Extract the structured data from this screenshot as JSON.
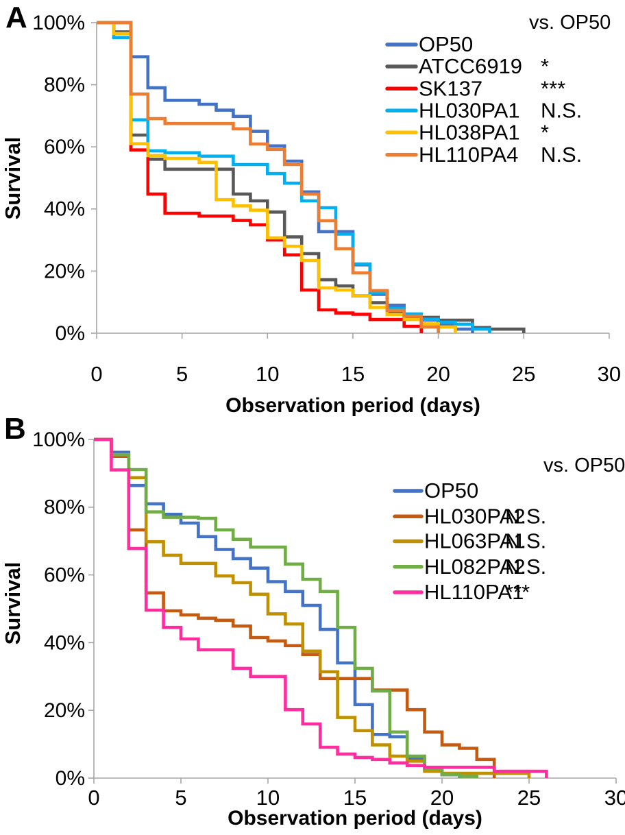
{
  "figure": {
    "background": "#FFFFFF",
    "axis_color": "#A6A6A6",
    "text_color": "#000000"
  },
  "chart_data": [
    {
      "type": "line",
      "subtype": "step-survival",
      "panel_label": "A",
      "xlabel": "Observation period (days)",
      "ylabel": "Survival",
      "legend_header": "vs. OP50",
      "legend_position": "top-right",
      "grid": false,
      "xlim": [
        0,
        30
      ],
      "ylim": [
        0,
        100
      ],
      "xticks": [
        0,
        5,
        10,
        15,
        20,
        25,
        30
      ],
      "xtick_labels": [
        "0",
        "5",
        "10",
        "15",
        "20",
        "25",
        "30"
      ],
      "yticks": [
        0,
        20,
        40,
        60,
        80,
        100
      ],
      "ytick_labels": [
        "0%",
        "20%",
        "40%",
        "60%",
        "80%",
        "100%"
      ],
      "series": [
        {
          "name": "OP50",
          "color": "#4472C4",
          "significance": "",
          "points": [
            [
              0,
              100
            ],
            [
              1,
              96.5
            ],
            [
              2,
              89
            ],
            [
              3,
              79
            ],
            [
              4,
              75
            ],
            [
              6,
              73.7
            ],
            [
              7,
              71.8
            ],
            [
              8,
              69.8
            ],
            [
              9,
              65
            ],
            [
              10,
              60.3
            ],
            [
              11,
              55.4
            ],
            [
              12,
              45.5
            ],
            [
              13,
              32.7
            ],
            [
              15,
              22
            ],
            [
              16,
              12.5
            ],
            [
              17,
              9
            ],
            [
              18,
              5
            ],
            [
              19,
              4.2
            ],
            [
              20,
              2.6
            ],
            [
              21,
              1.3
            ],
            [
              22,
              0
            ]
          ]
        },
        {
          "name": "ATCC6919",
          "color": "#595959",
          "significance": "*",
          "points": [
            [
              0,
              100
            ],
            [
              1,
              97
            ],
            [
              2,
              63.8
            ],
            [
              3,
              56
            ],
            [
              4,
              52.8
            ],
            [
              8,
              44.8
            ],
            [
              9,
              42.6
            ],
            [
              10,
              39
            ],
            [
              11,
              31
            ],
            [
              12,
              25.6
            ],
            [
              13,
              17.2
            ],
            [
              14,
              15.2
            ],
            [
              15,
              12
            ],
            [
              16,
              9.8
            ],
            [
              17,
              7
            ],
            [
              18,
              5.1
            ],
            [
              20,
              4.2
            ],
            [
              22,
              1.8
            ],
            [
              23,
              1.3
            ],
            [
              25,
              0
            ]
          ]
        },
        {
          "name": "SK137",
          "color": "#FF0000",
          "significance": "***",
          "points": [
            [
              0,
              100
            ],
            [
              2,
              59
            ],
            [
              3,
              44.8
            ],
            [
              4,
              38.6
            ],
            [
              6,
              37.7
            ],
            [
              8,
              36.3
            ],
            [
              9,
              34.9
            ],
            [
              10,
              30
            ],
            [
              11,
              25.2
            ],
            [
              12,
              13.9
            ],
            [
              13,
              7.5
            ],
            [
              14,
              6.5
            ],
            [
              15,
              6.1
            ],
            [
              16,
              4.4
            ],
            [
              18,
              2.2
            ],
            [
              19,
              0
            ]
          ]
        },
        {
          "name": "HL030PA1",
          "color": "#00B0F0",
          "significance": "N.S.",
          "points": [
            [
              0,
              100
            ],
            [
              1,
              95.2
            ],
            [
              2,
              68.7
            ],
            [
              3,
              58.7
            ],
            [
              4,
              58.1
            ],
            [
              6,
              57
            ],
            [
              8,
              54.3
            ],
            [
              10,
              51.4
            ],
            [
              11,
              48.3
            ],
            [
              12,
              42.6
            ],
            [
              13,
              40.4
            ],
            [
              14,
              31.9
            ],
            [
              15,
              22.3
            ],
            [
              16,
              13
            ],
            [
              17,
              8
            ],
            [
              18,
              6.2
            ],
            [
              19,
              4.5
            ],
            [
              20,
              3.5
            ],
            [
              21,
              2.9
            ],
            [
              22,
              1.3
            ],
            [
              23,
              0
            ]
          ]
        },
        {
          "name": "HL038PA1",
          "color": "#FFC000",
          "significance": "*",
          "points": [
            [
              0,
              100
            ],
            [
              1,
              96.5
            ],
            [
              2,
              61
            ],
            [
              3,
              57.2
            ],
            [
              4,
              56.3
            ],
            [
              6,
              55
            ],
            [
              7,
              43
            ],
            [
              8,
              41
            ],
            [
              9,
              39.6
            ],
            [
              10,
              30.7
            ],
            [
              11,
              28
            ],
            [
              12,
              23.4
            ],
            [
              13,
              14.6
            ],
            [
              14,
              13.9
            ],
            [
              15,
              12
            ],
            [
              16,
              8.3
            ],
            [
              17,
              6
            ],
            [
              18,
              4.4
            ],
            [
              19,
              3
            ],
            [
              20,
              2
            ],
            [
              21,
              0
            ]
          ]
        },
        {
          "name": "HL110PA4",
          "color": "#ED7D31",
          "significance": "N.S.",
          "points": [
            [
              0,
              100
            ],
            [
              2,
              77
            ],
            [
              3,
              69.1
            ],
            [
              4,
              67.5
            ],
            [
              8,
              65.8
            ],
            [
              9,
              60.9
            ],
            [
              10,
              59.2
            ],
            [
              11,
              54.3
            ],
            [
              12,
              44.8
            ],
            [
              13,
              36.2
            ],
            [
              14,
              27.2
            ],
            [
              15,
              19.4
            ],
            [
              16,
              13.7
            ],
            [
              17,
              7.3
            ],
            [
              18,
              5.5
            ],
            [
              19,
              2
            ],
            [
              20,
              0
            ]
          ]
        }
      ]
    },
    {
      "type": "line",
      "subtype": "step-survival",
      "panel_label": "B",
      "xlabel": "Observation period (days)",
      "ylabel": "Survival",
      "legend_header": "vs. OP50",
      "legend_position": "top-right",
      "grid": false,
      "xlim": [
        0,
        30
      ],
      "ylim": [
        0,
        100
      ],
      "xticks": [
        0,
        5,
        10,
        15,
        20,
        25,
        30
      ],
      "xtick_labels": [
        "0",
        "5",
        "10",
        "15",
        "20",
        "25",
        "30"
      ],
      "yticks": [
        0,
        20,
        40,
        60,
        80,
        100
      ],
      "ytick_labels": [
        "0%",
        "20%",
        "40%",
        "60%",
        "80%",
        "100%"
      ],
      "series": [
        {
          "name": "OP50",
          "color": "#4472C4",
          "significance": "",
          "points": [
            [
              0,
              100
            ],
            [
              1,
              96.2
            ],
            [
              2,
              86.4
            ],
            [
              3,
              81
            ],
            [
              4,
              77.9
            ],
            [
              5,
              75.3
            ],
            [
              6,
              71.3
            ],
            [
              7,
              67.5
            ],
            [
              8,
              64.8
            ],
            [
              9,
              62
            ],
            [
              10,
              58
            ],
            [
              11,
              55.1
            ],
            [
              12,
              51
            ],
            [
              13,
              43.9
            ],
            [
              14,
              34
            ],
            [
              15,
              21.7
            ],
            [
              16,
              12.9
            ],
            [
              17,
              12.2
            ],
            [
              18,
              5.9
            ],
            [
              19,
              2.4
            ],
            [
              20,
              1
            ],
            [
              21,
              0
            ]
          ]
        },
        {
          "name": "HL030PA2",
          "color": "#C55A11",
          "significance": "N.S.",
          "points": [
            [
              0,
              100
            ],
            [
              1,
              95
            ],
            [
              2,
              73.3
            ],
            [
              3,
              54.7
            ],
            [
              4,
              49.4
            ],
            [
              5,
              48.2
            ],
            [
              6,
              47.2
            ],
            [
              7,
              46.6
            ],
            [
              8,
              44.9
            ],
            [
              9,
              41.5
            ],
            [
              10,
              40.5
            ],
            [
              11,
              39.1
            ],
            [
              12,
              36.5
            ],
            [
              13,
              29.4
            ],
            [
              16,
              26
            ],
            [
              18,
              20.2
            ],
            [
              19,
              13.6
            ],
            [
              20,
              9.8
            ],
            [
              21,
              8.8
            ],
            [
              22,
              5.5
            ],
            [
              23,
              0
            ]
          ]
        },
        {
          "name": "HL063PA1",
          "color": "#BF9000",
          "significance": "N.S.",
          "points": [
            [
              0,
              100
            ],
            [
              1,
              95.5
            ],
            [
              2,
              88.7
            ],
            [
              3,
              69.8
            ],
            [
              4,
              65.8
            ],
            [
              5,
              63.4
            ],
            [
              7,
              59.7
            ],
            [
              8,
              57.7
            ],
            [
              9,
              54.3
            ],
            [
              10,
              48.5
            ],
            [
              11,
              45.5
            ],
            [
              12,
              37.5
            ],
            [
              13,
              31.4
            ],
            [
              14,
              17.9
            ],
            [
              15,
              14
            ],
            [
              16,
              9.8
            ],
            [
              17,
              6.5
            ],
            [
              18,
              5
            ],
            [
              19,
              2
            ],
            [
              20,
              1.4
            ],
            [
              25,
              0
            ]
          ]
        },
        {
          "name": "HL082PA2",
          "color": "#70AD47",
          "significance": "N.S.",
          "points": [
            [
              0,
              100
            ],
            [
              1,
              95.5
            ],
            [
              2,
              91.1
            ],
            [
              3,
              78.6
            ],
            [
              4,
              77
            ],
            [
              6,
              76.7
            ],
            [
              7,
              73.3
            ],
            [
              8,
              70.5
            ],
            [
              9,
              68.2
            ],
            [
              11,
              63.2
            ],
            [
              12,
              58.7
            ],
            [
              13,
              55.1
            ],
            [
              14,
              44.5
            ],
            [
              15,
              32.4
            ],
            [
              16,
              25.7
            ],
            [
              17,
              13.6
            ],
            [
              18,
              6.5
            ],
            [
              19,
              2.7
            ],
            [
              20,
              1
            ],
            [
              21,
              0.5
            ],
            [
              22,
              0
            ]
          ]
        },
        {
          "name": "HL110PA1",
          "color": "#FF2E9E",
          "significance": "***",
          "points": [
            [
              0,
              100
            ],
            [
              1,
              91
            ],
            [
              2,
              67.8
            ],
            [
              3,
              49.6
            ],
            [
              4,
              44.5
            ],
            [
              5,
              41.1
            ],
            [
              6,
              37.9
            ],
            [
              8,
              32.4
            ],
            [
              9,
              30
            ],
            [
              11,
              20.2
            ],
            [
              12,
              16
            ],
            [
              13,
              9.1
            ],
            [
              14,
              7.1
            ],
            [
              15,
              6.1
            ],
            [
              16,
              5.5
            ],
            [
              17,
              4.5
            ],
            [
              18,
              3.7
            ],
            [
              19,
              3.2
            ],
            [
              23,
              2
            ],
            [
              26,
              0
            ]
          ]
        }
      ]
    }
  ]
}
